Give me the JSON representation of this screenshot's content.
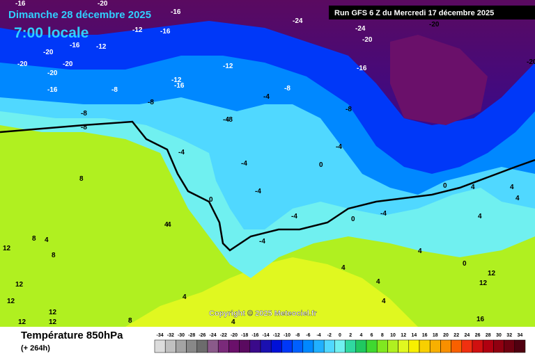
{
  "header": {
    "date": "Dimanche 28 décembre 2025",
    "time": "7:00 locale",
    "run": "Run GFS 6 Z du Mercredi 17 décembre 2025"
  },
  "copyright": "Copyright © 2025 Meteociel.fr",
  "footer": {
    "title": "Température 850hPa",
    "lead": "(+ 264h)"
  },
  "contour_labels": [
    -16,
    -20,
    -16,
    -12,
    -16,
    -12,
    -16,
    -20,
    -20,
    -20,
    -20,
    -16,
    -12,
    -8,
    -16,
    -12,
    -8,
    -8,
    -8,
    -8,
    -4,
    -8,
    -4,
    -4,
    -4,
    -8,
    -4,
    -24,
    -24,
    -20,
    -20,
    -16,
    -20,
    -4,
    0,
    4,
    0,
    -4,
    0,
    -4,
    -4,
    0,
    4,
    4,
    4,
    4,
    4,
    0,
    4,
    4,
    8,
    4,
    8,
    8,
    12,
    12,
    12,
    12,
    12,
    12,
    8,
    4,
    4,
    4,
    4,
    16,
    12,
    12
  ],
  "colorbar": {
    "values": [
      -34,
      -32,
      -30,
      -28,
      -26,
      -24,
      -22,
      -20,
      -18,
      -16,
      -14,
      -12,
      -10,
      -8,
      -6,
      -4,
      -2,
      0,
      2,
      4,
      6,
      8,
      10,
      12,
      14,
      16,
      18,
      20,
      22,
      24,
      26,
      28,
      30,
      32,
      34
    ],
    "colors": [
      "#dcdcdc",
      "#c0c0c0",
      "#a4a4a4",
      "#888888",
      "#6c6c6c",
      "#8a5a8a",
      "#7a2a7a",
      "#6a106a",
      "#5a0a60",
      "#3a0a8a",
      "#1a10b0",
      "#0010d8",
      "#0038f8",
      "#0060ff",
      "#0088ff",
      "#20b0ff",
      "#50d8ff",
      "#70f0f0",
      "#30d8a0",
      "#20c860",
      "#40d830",
      "#80e820",
      "#b0f020",
      "#e0f820",
      "#f8f000",
      "#f8d000",
      "#f8b000",
      "#f89000",
      "#f86000",
      "#f03010",
      "#d01010",
      "#b00010",
      "#900010",
      "#700010",
      "#500010"
    ]
  }
}
